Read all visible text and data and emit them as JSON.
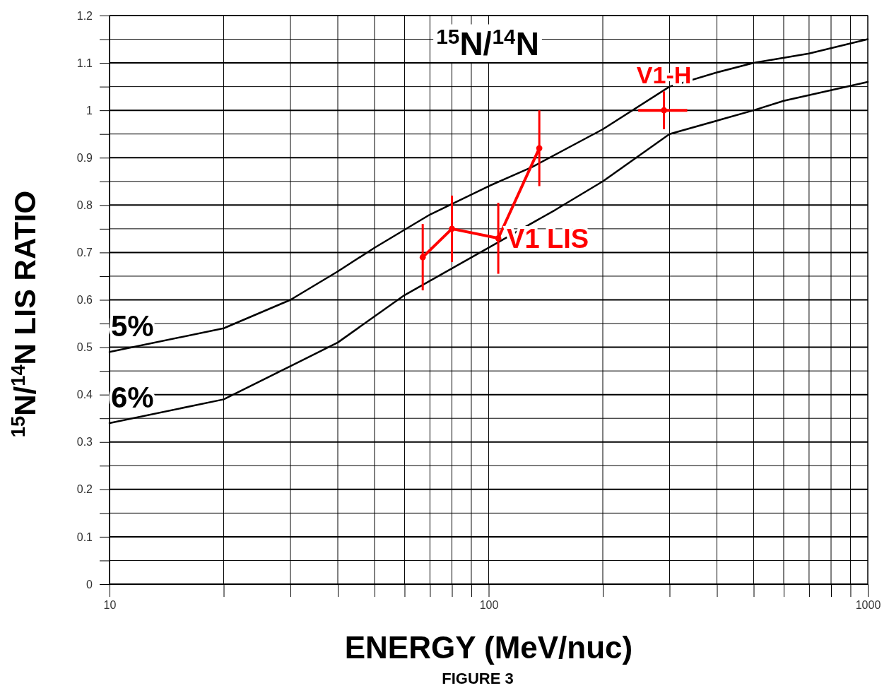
{
  "chart_data": {
    "type": "line",
    "title": "$^{15}$N/$^{14}$N",
    "xlabel": "ENERGY (MeV/nuc)",
    "ylabel": "$^{15}$N/$^{14}$N LIS RATIO",
    "annotations": [
      "FIGURE 3"
    ],
    "log": "x",
    "grid": true,
    "xlim": [
      10,
      1000
    ],
    "ylim": [
      0,
      1.2
    ],
    "xticks": [
      10,
      {
        "value": 20,
        "label": null
      },
      {
        "value": 30,
        "label": null
      },
      {
        "value": 40,
        "label": null
      },
      {
        "value": 50,
        "label": null
      },
      {
        "value": 60,
        "label": null
      },
      {
        "value": 70,
        "label": null
      },
      {
        "value": 80,
        "label": null
      },
      {
        "value": 90,
        "label": null
      },
      100,
      {
        "value": 200,
        "label": null
      },
      {
        "value": 300,
        "label": null
      },
      {
        "value": 400,
        "label": null
      },
      {
        "value": 500,
        "label": null
      },
      {
        "value": 600,
        "label": null
      },
      {
        "value": 700,
        "label": null
      },
      {
        "value": 800,
        "label": null
      },
      {
        "value": 900,
        "label": null
      },
      1000
    ],
    "yticks": [
      0,
      {
        "value": 0.05,
        "label": null
      },
      0.1,
      {
        "value": 0.15,
        "label": null
      },
      0.2,
      {
        "value": 0.25,
        "label": null
      },
      0.3,
      {
        "value": 0.35,
        "label": null
      },
      0.4,
      {
        "value": 0.45,
        "label": null
      },
      0.5,
      {
        "value": 0.55,
        "label": null
      },
      0.6,
      {
        "value": 0.65,
        "label": null
      },
      0.7,
      {
        "value": 0.75,
        "label": null
      },
      0.8,
      {
        "value": 0.85,
        "label": null
      },
      0.9,
      {
        "value": 0.95,
        "label": null
      },
      1,
      {
        "value": 1.05,
        "label": null
      },
      1.1,
      {
        "value": 1.15,
        "label": null
      },
      1.2
    ],
    "series": [
      {
        "name": "5%",
        "marker": "none",
        "color": "#000000",
        "x": [
          10,
          20,
          30,
          40,
          50,
          70,
          100,
          130,
          200,
          300,
          400,
          500,
          700,
          1000
        ],
        "values": [
          0.49,
          0.54,
          0.6,
          0.66,
          0.71,
          0.78,
          0.84,
          0.88,
          0.96,
          1.05,
          1.08,
          1.1,
          1.12,
          1.15
        ]
      },
      {
        "name": "6%",
        "marker": "none",
        "color": "#000000",
        "x": [
          10,
          20,
          30,
          40,
          60,
          100,
          150,
          200,
          300,
          500,
          600,
          1000
        ],
        "values": [
          0.34,
          0.39,
          0.46,
          0.51,
          0.61,
          0.71,
          0.79,
          0.85,
          0.95,
          1.0,
          1.02,
          1.06
        ]
      },
      {
        "name": "V1 LIS",
        "marker": "circle",
        "color": "#ff0000",
        "x": [
          67,
          80,
          106,
          136
        ],
        "values": [
          0.69,
          0.75,
          0.73,
          0.92
        ],
        "errors": [
          0.07,
          0.07,
          0.075,
          0.08
        ]
      },
      {
        "name": "V1-H",
        "type": "scatter",
        "marker": "circle",
        "color": "#ff0000",
        "x": [
          290
        ],
        "values": [
          1.0
        ],
        "errors": [
          0.04
        ],
        "xerrors": [
          [
            248,
            334
          ]
        ]
      }
    ]
  }
}
